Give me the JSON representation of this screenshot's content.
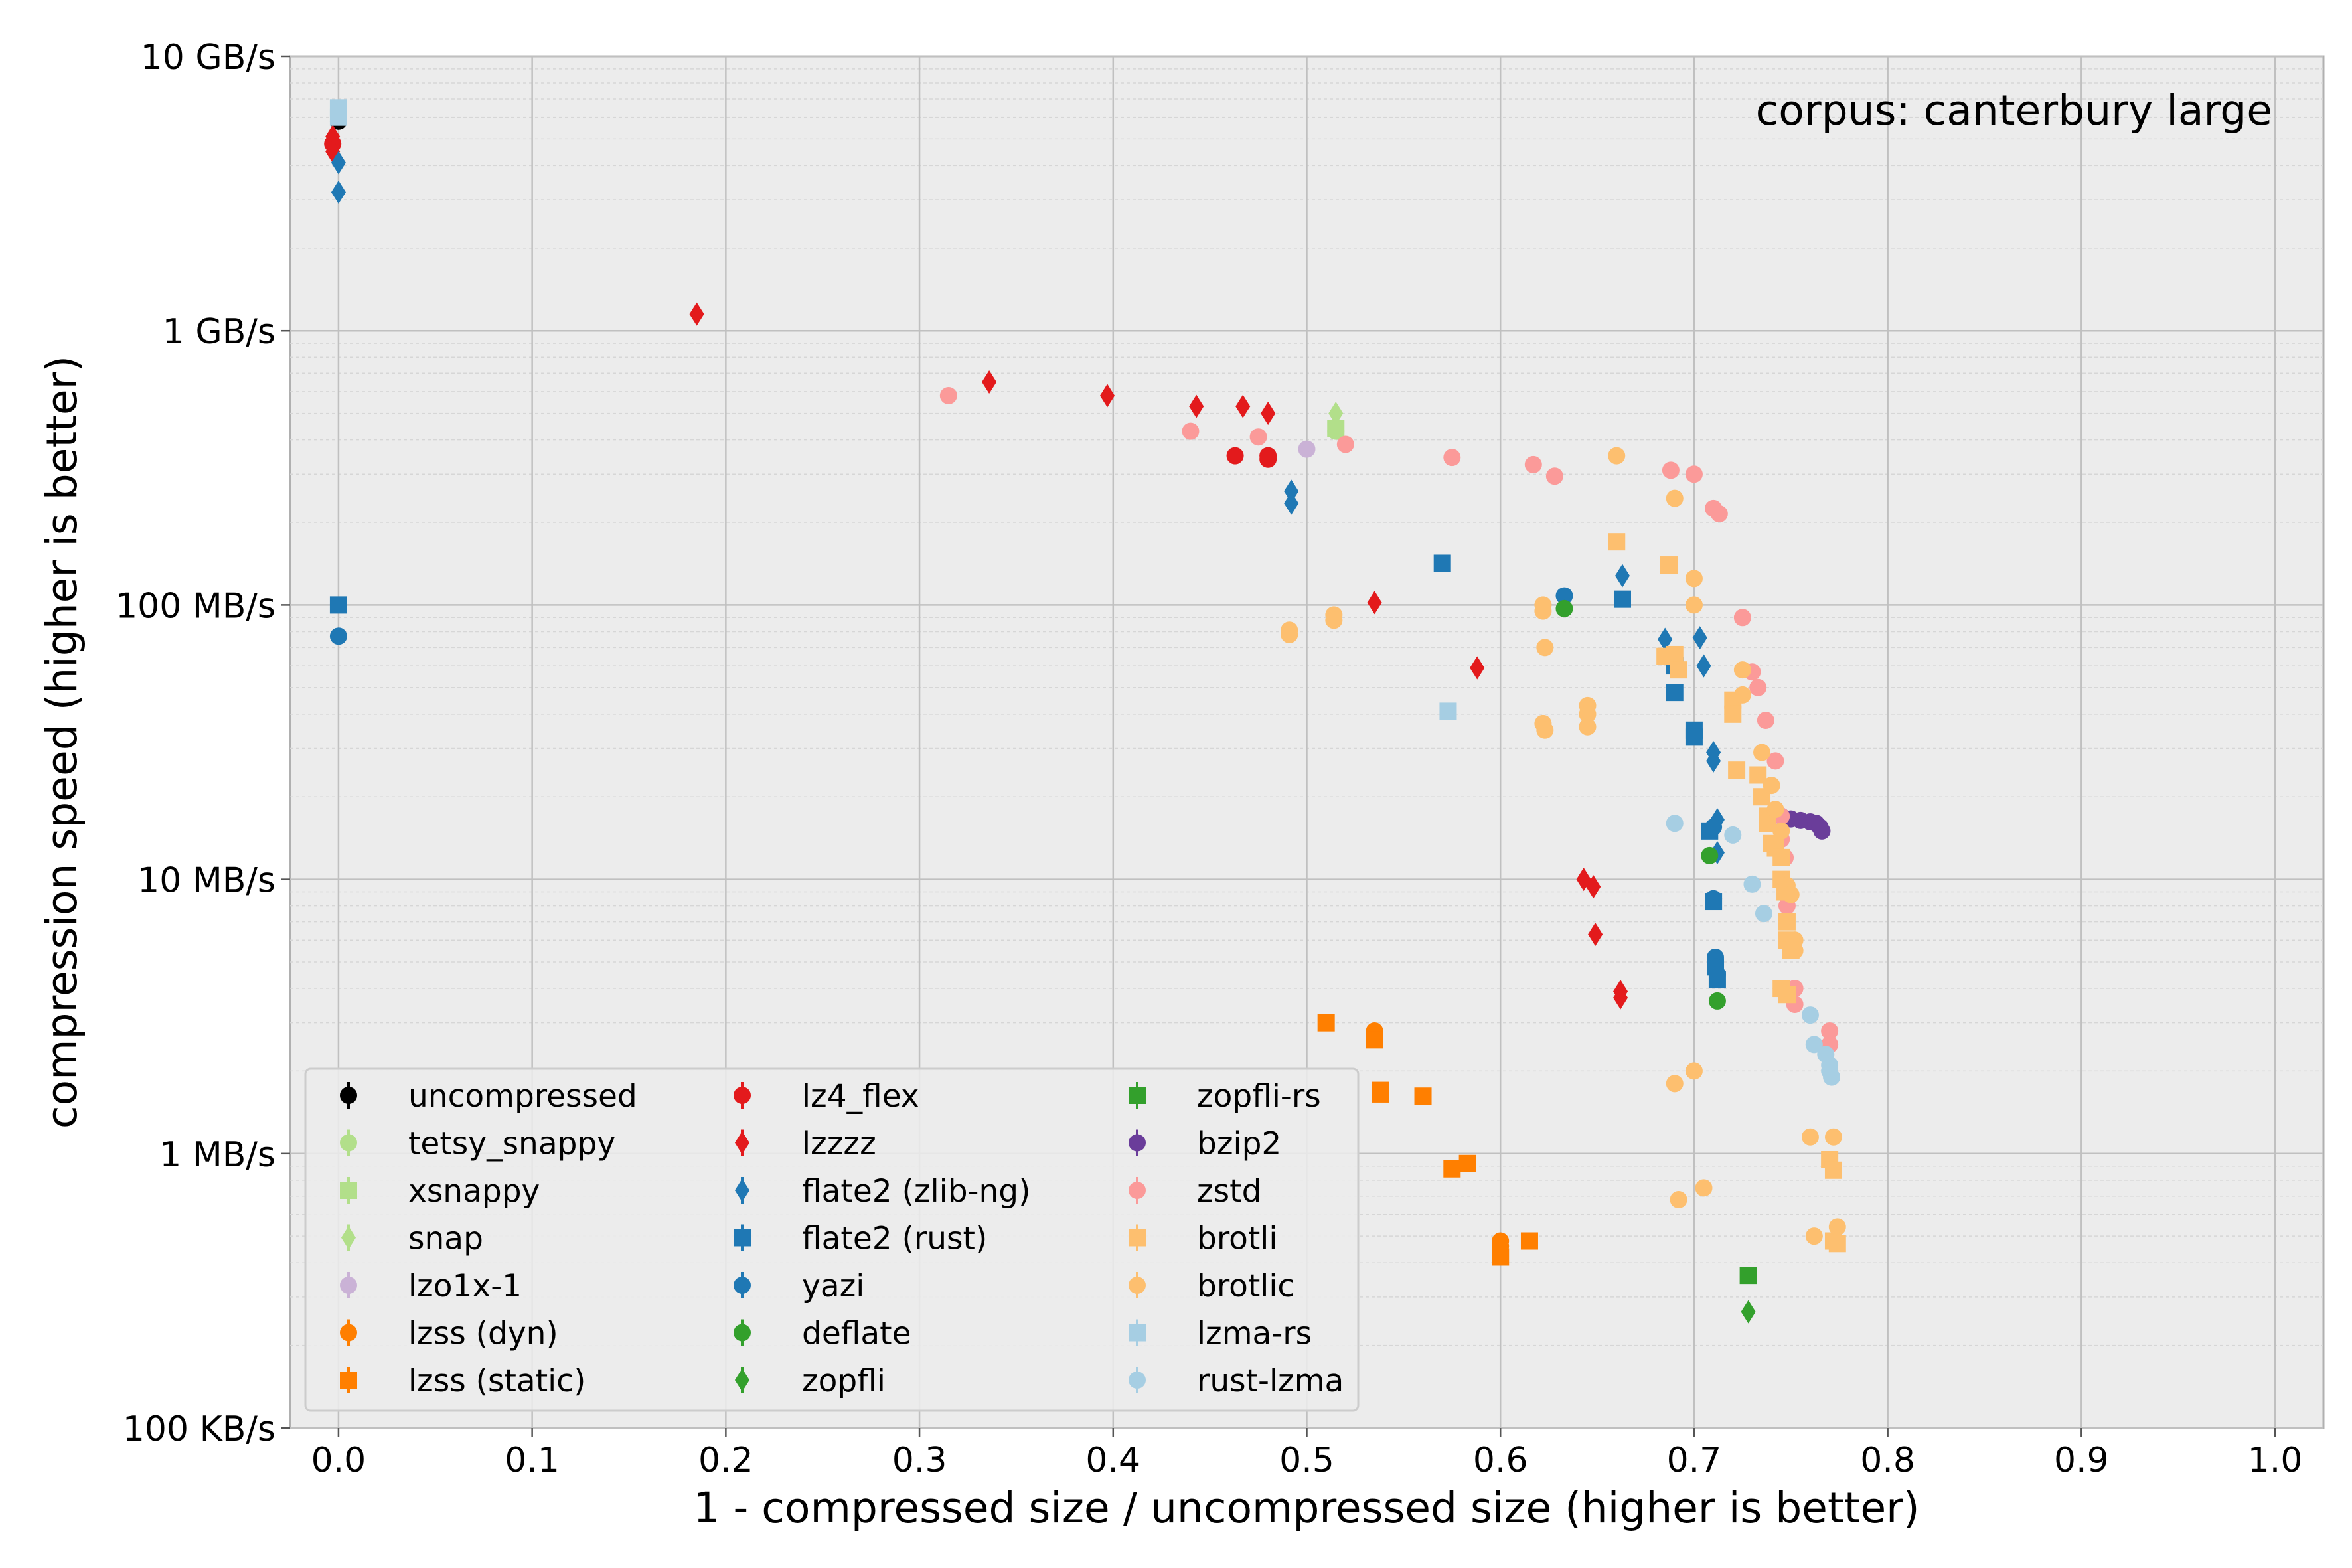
{
  "chart_data": {
    "type": "scatter",
    "title": "",
    "annotation": "corpus: canterbury large",
    "xlabel": "1 - compressed size / uncompressed size (higher is better)",
    "ylabel": "compression speed (higher is better)",
    "xlim": [
      -0.025,
      1.025
    ],
    "ylim_bytes_per_s": [
      100000,
      10000000000
    ],
    "yscale": "log",
    "grid": true,
    "legend_position": "lower-left",
    "background_color": "#ececec",
    "x_ticks": [
      {
        "value": 0.0,
        "label": "0.0"
      },
      {
        "value": 0.1,
        "label": "0.1"
      },
      {
        "value": 0.2,
        "label": "0.2"
      },
      {
        "value": 0.3,
        "label": "0.3"
      },
      {
        "value": 0.4,
        "label": "0.4"
      },
      {
        "value": 0.5,
        "label": "0.5"
      },
      {
        "value": 0.6,
        "label": "0.6"
      },
      {
        "value": 0.7,
        "label": "0.7"
      },
      {
        "value": 0.8,
        "label": "0.8"
      },
      {
        "value": 0.9,
        "label": "0.9"
      },
      {
        "value": 1.0,
        "label": "1.0"
      }
    ],
    "y_ticks": [
      {
        "value": 100000,
        "label": "100 KB/s"
      },
      {
        "value": 1000000,
        "label": "1 MB/s"
      },
      {
        "value": 10000000,
        "label": "10 MB/s"
      },
      {
        "value": 100000000,
        "label": "100 MB/s"
      },
      {
        "value": 1000000000,
        "label": "1 GB/s"
      },
      {
        "value": 10000000000,
        "label": "10 GB/s"
      }
    ],
    "series": [
      {
        "name": "uncompressed",
        "color": "#000000",
        "marker": "circle",
        "points": [
          [
            0.0,
            5800000000
          ]
        ]
      },
      {
        "name": "tetsy_snappy",
        "color": "#b2df8a",
        "marker": "circle",
        "points": [
          [
            0.515,
            430000000
          ]
        ]
      },
      {
        "name": "xsnappy",
        "color": "#b2df8a",
        "marker": "square",
        "points": [
          [
            0.515,
            440000000
          ]
        ]
      },
      {
        "name": "snap",
        "color": "#b2df8a",
        "marker": "diamond",
        "points": [
          [
            0.515,
            500000000
          ]
        ]
      },
      {
        "name": "lzo1x-1",
        "color": "#cab2d6",
        "marker": "circle",
        "points": [
          [
            0.5,
            370000000
          ]
        ]
      },
      {
        "name": "lzss (dyn)",
        "color": "#ff7f00",
        "marker": "circle",
        "points": [
          [
            0.535,
            2800000
          ],
          [
            0.535,
            2700000
          ],
          [
            0.6,
            480000
          ],
          [
            0.6,
            460000
          ]
        ]
      },
      {
        "name": "lzss (static)",
        "color": "#ff7f00",
        "marker": "square",
        "points": [
          [
            0.51,
            3000000
          ],
          [
            0.535,
            2600000
          ],
          [
            0.538,
            1700000
          ],
          [
            0.538,
            1650000
          ],
          [
            0.56,
            1620000
          ],
          [
            0.575,
            880000
          ],
          [
            0.583,
            920000
          ],
          [
            0.6,
            420000
          ],
          [
            0.615,
            480000
          ]
        ]
      },
      {
        "name": "lz4_flex",
        "color": "#e31a1c",
        "marker": "circle",
        "points": [
          [
            -0.003,
            4800000000
          ],
          [
            0.463,
            350000000
          ],
          [
            0.48,
            350000000
          ],
          [
            0.48,
            340000000
          ]
        ]
      },
      {
        "name": "lzzzz",
        "color": "#e31a1c",
        "marker": "diamond",
        "points": [
          [
            -0.003,
            5100000000
          ],
          [
            -0.003,
            4500000000
          ],
          [
            0.185,
            1150000000
          ],
          [
            0.336,
            650000000
          ],
          [
            0.397,
            580000000
          ],
          [
            0.443,
            530000000
          ],
          [
            0.467,
            530000000
          ],
          [
            0.48,
            500000000
          ],
          [
            0.535,
            102000000
          ],
          [
            0.588,
            59000000
          ],
          [
            0.643,
            10000000
          ],
          [
            0.648,
            9400000
          ],
          [
            0.649,
            6300000
          ],
          [
            0.662,
            3900000
          ],
          [
            0.662,
            3700000
          ]
        ]
      },
      {
        "name": "flate2 (zlib-ng)",
        "color": "#1f78b4",
        "marker": "diamond",
        "points": [
          [
            0.0,
            4100000000
          ],
          [
            0.0,
            3200000000
          ],
          [
            0.492,
            260000000
          ],
          [
            0.492,
            235000000
          ],
          [
            0.663,
            128000000
          ],
          [
            0.685,
            75000000
          ],
          [
            0.703,
            76000000
          ],
          [
            0.705,
            60000000
          ],
          [
            0.71,
            29000000
          ],
          [
            0.71,
            27000000
          ],
          [
            0.712,
            16500000
          ],
          [
            0.712,
            12500000
          ]
        ]
      },
      {
        "name": "flate2 (rust)",
        "color": "#1f78b4",
        "marker": "square",
        "points": [
          [
            0.0,
            100000000
          ],
          [
            0.57,
            142000000
          ],
          [
            0.663,
            105000000
          ],
          [
            0.69,
            60000000
          ],
          [
            0.69,
            48000000
          ],
          [
            0.7,
            35000000
          ],
          [
            0.7,
            33000000
          ],
          [
            0.708,
            15000000
          ],
          [
            0.71,
            8300000
          ],
          [
            0.711,
            4800000
          ],
          [
            0.712,
            4300000
          ]
        ]
      },
      {
        "name": "yazi",
        "color": "#1f78b4",
        "marker": "circle",
        "points": [
          [
            0.0,
            77000000
          ],
          [
            0.633,
            108000000
          ],
          [
            0.71,
            15500000
          ],
          [
            0.71,
            8500000
          ],
          [
            0.711,
            5200000
          ],
          [
            0.711,
            4800000
          ],
          [
            0.712,
            4500000
          ]
        ]
      },
      {
        "name": "deflate",
        "color": "#33a02c",
        "marker": "circle",
        "points": [
          [
            0.633,
            97000000
          ],
          [
            0.708,
            12200000
          ],
          [
            0.712,
            3600000
          ]
        ]
      },
      {
        "name": "zopfli",
        "color": "#33a02c",
        "marker": "diamond",
        "points": [
          [
            0.728,
            265000
          ]
        ]
      },
      {
        "name": "zopfli-rs",
        "color": "#33a02c",
        "marker": "square",
        "points": [
          [
            0.728,
            360000
          ]
        ]
      },
      {
        "name": "bzip2",
        "color": "#6a3d9a",
        "marker": "circle",
        "points": [
          [
            0.745,
            17000000
          ],
          [
            0.75,
            16600000
          ],
          [
            0.755,
            16400000
          ],
          [
            0.76,
            16200000
          ],
          [
            0.763,
            16000000
          ],
          [
            0.765,
            15500000
          ],
          [
            0.766,
            15000000
          ]
        ]
      },
      {
        "name": "zstd",
        "color": "#fb9a99",
        "marker": "circle",
        "points": [
          [
            0.315,
            580000000
          ],
          [
            0.44,
            430000000
          ],
          [
            0.475,
            410000000
          ],
          [
            0.52,
            385000000
          ],
          [
            0.575,
            345000000
          ],
          [
            0.617,
            325000000
          ],
          [
            0.628,
            295000000
          ],
          [
            0.688,
            310000000
          ],
          [
            0.7,
            300000000
          ],
          [
            0.71,
            225000000
          ],
          [
            0.713,
            215000000
          ],
          [
            0.725,
            90000000
          ],
          [
            0.73,
            57000000
          ],
          [
            0.733,
            50000000
          ],
          [
            0.737,
            38000000
          ],
          [
            0.742,
            27000000
          ],
          [
            0.745,
            17000000
          ],
          [
            0.745,
            14000000
          ],
          [
            0.747,
            12000000
          ],
          [
            0.748,
            9000000
          ],
          [
            0.748,
            8000000
          ],
          [
            0.752,
            4000000
          ],
          [
            0.752,
            3500000
          ],
          [
            0.77,
            2800000
          ],
          [
            0.77,
            2500000
          ]
        ]
      },
      {
        "name": "brotli",
        "color": "#fdbf6f",
        "marker": "square",
        "points": [
          [
            0.66,
            170000000
          ],
          [
            0.687,
            140000000
          ],
          [
            0.685,
            65000000
          ],
          [
            0.69,
            66000000
          ],
          [
            0.692,
            58000000
          ],
          [
            0.72,
            45000000
          ],
          [
            0.72,
            40000000
          ],
          [
            0.722,
            25000000
          ],
          [
            0.733,
            24000000
          ],
          [
            0.735,
            20000000
          ],
          [
            0.738,
            17000000
          ],
          [
            0.738,
            16000000
          ],
          [
            0.74,
            13500000
          ],
          [
            0.742,
            13000000
          ],
          [
            0.745,
            12000000
          ],
          [
            0.745,
            10000000
          ],
          [
            0.747,
            9000000
          ],
          [
            0.748,
            7000000
          ],
          [
            0.748,
            6000000
          ],
          [
            0.75,
            5500000
          ],
          [
            0.745,
            4000000
          ],
          [
            0.748,
            3800000
          ],
          [
            0.77,
            950000
          ],
          [
            0.772,
            870000
          ],
          [
            0.772,
            480000
          ],
          [
            0.774,
            470000
          ]
        ]
      },
      {
        "name": "brotlic",
        "color": "#fdbf6f",
        "marker": "circle",
        "points": [
          [
            0.66,
            350000000
          ],
          [
            0.69,
            245000000
          ],
          [
            0.7,
            125000000
          ],
          [
            0.7,
            100000000
          ],
          [
            0.622,
            100000000
          ],
          [
            0.622,
            95000000
          ],
          [
            0.623,
            70000000
          ],
          [
            0.491,
            81000000
          ],
          [
            0.491,
            78000000
          ],
          [
            0.514,
            92000000
          ],
          [
            0.514,
            88000000
          ],
          [
            0.622,
            37000000
          ],
          [
            0.623,
            35000000
          ],
          [
            0.645,
            43000000
          ],
          [
            0.645,
            40000000
          ],
          [
            0.645,
            36000000
          ],
          [
            0.725,
            58000000
          ],
          [
            0.725,
            47000000
          ],
          [
            0.735,
            29000000
          ],
          [
            0.74,
            22000000
          ],
          [
            0.742,
            18000000
          ],
          [
            0.745,
            15000000
          ],
          [
            0.748,
            9500000
          ],
          [
            0.75,
            8800000
          ],
          [
            0.752,
            6000000
          ],
          [
            0.752,
            5500000
          ],
          [
            0.69,
            1800000
          ],
          [
            0.7,
            2000000
          ],
          [
            0.76,
            1150000
          ],
          [
            0.772,
            1150000
          ],
          [
            0.692,
            680000
          ],
          [
            0.705,
            750000
          ],
          [
            0.762,
            500000
          ],
          [
            0.774,
            540000
          ]
        ]
      },
      {
        "name": "lzma-rs",
        "color": "#a6cee3",
        "marker": "square",
        "points": [
          [
            0.0,
            6500000000
          ],
          [
            0.0,
            6000000000
          ],
          [
            0.573,
            41000000
          ]
        ]
      },
      {
        "name": "rust-lzma",
        "color": "#a6cee3",
        "marker": "circle",
        "points": [
          [
            0.69,
            16000000
          ],
          [
            0.72,
            14500000
          ],
          [
            0.73,
            9600000
          ],
          [
            0.736,
            7500000
          ],
          [
            0.76,
            3200000
          ],
          [
            0.762,
            2500000
          ],
          [
            0.768,
            2300000
          ],
          [
            0.77,
            2100000
          ],
          [
            0.77,
            2000000
          ],
          [
            0.771,
            1900000
          ]
        ]
      }
    ]
  }
}
